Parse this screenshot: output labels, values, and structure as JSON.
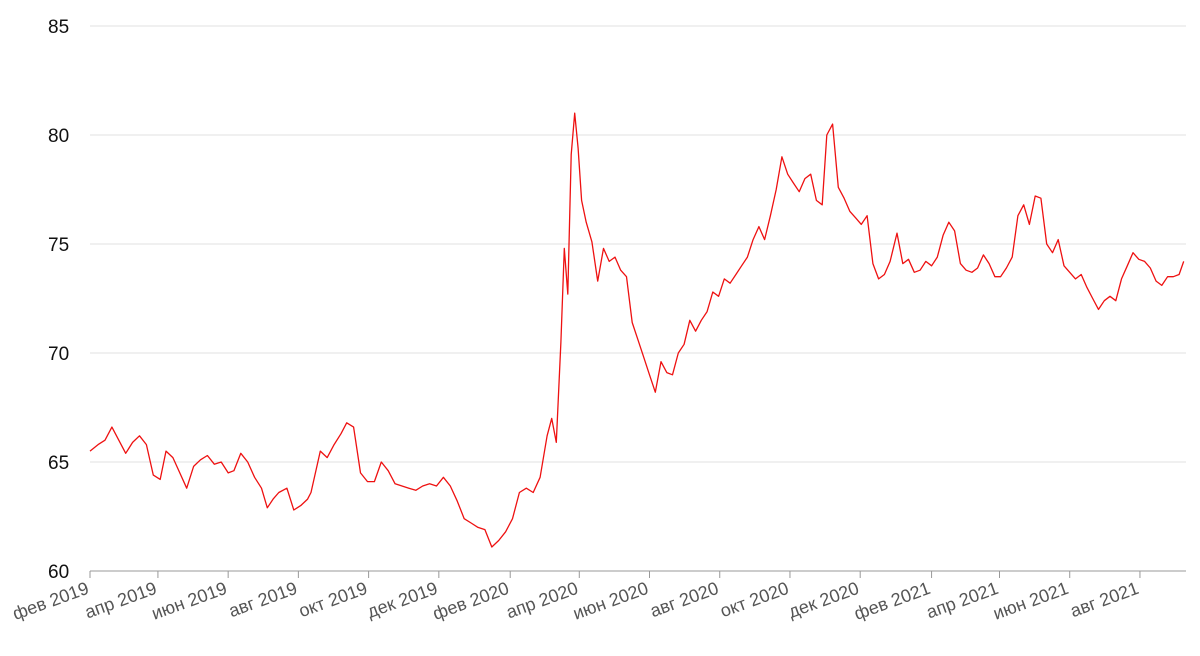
{
  "chart_data": {
    "type": "line",
    "title": "",
    "xlabel": "",
    "ylabel": "",
    "xlim": [
      "2019-02-01",
      "2021-09-10"
    ],
    "ylim": [
      60,
      85
    ],
    "yticks": [
      60,
      65,
      70,
      75,
      80,
      85
    ],
    "ytick_labels": [
      "60",
      "65",
      "70",
      "75",
      "80",
      "85"
    ],
    "xticks": [
      "2019-02-01",
      "2019-04-01",
      "2019-06-01",
      "2019-08-01",
      "2019-10-01",
      "2019-12-01",
      "2020-02-01",
      "2020-04-01",
      "2020-06-01",
      "2020-08-01",
      "2020-10-01",
      "2020-12-01",
      "2021-02-01",
      "2021-04-01",
      "2021-06-01",
      "2021-08-01"
    ],
    "xtick_labels": [
      "фев 2019",
      "апр 2019",
      "июн 2019",
      "авг 2019",
      "окт 2019",
      "дек 2019",
      "фев 2020",
      "апр 2020",
      "июн 2020",
      "авг 2020",
      "окт 2020",
      "дек 2020",
      "фев 2021",
      "апр 2021",
      "июн 2021",
      "авг 2021"
    ],
    "grid": true,
    "legend": "none",
    "line_color": "#ee1111",
    "series": [
      {
        "x": [
          "2019-02-01",
          "2019-02-08",
          "2019-02-14",
          "2019-02-20",
          "2019-02-26",
          "2019-03-04",
          "2019-03-10",
          "2019-03-16",
          "2019-03-22",
          "2019-03-28",
          "2019-04-03",
          "2019-04-08",
          "2019-04-14",
          "2019-04-20",
          "2019-04-26",
          "2019-05-02",
          "2019-05-08",
          "2019-05-14",
          "2019-05-20",
          "2019-05-26",
          "2019-06-01",
          "2019-06-06",
          "2019-06-12",
          "2019-06-18",
          "2019-06-24",
          "2019-06-30",
          "2019-07-05",
          "2019-07-10",
          "2019-07-15",
          "2019-07-22",
          "2019-07-28",
          "2019-08-03",
          "2019-08-09",
          "2019-08-12",
          "2019-08-20",
          "2019-08-26",
          "2019-09-01",
          "2019-09-07",
          "2019-09-12",
          "2019-09-18",
          "2019-09-24",
          "2019-09-30",
          "2019-10-06",
          "2019-10-12",
          "2019-10-18",
          "2019-10-24",
          "2019-10-30",
          "2019-11-05",
          "2019-11-11",
          "2019-11-17",
          "2019-11-23",
          "2019-11-29",
          "2019-12-05",
          "2019-12-11",
          "2019-12-17",
          "2019-12-23",
          "2019-12-29",
          "2020-01-04",
          "2020-01-10",
          "2020-01-16",
          "2020-01-22",
          "2020-01-28",
          "2020-02-03",
          "2020-02-09",
          "2020-02-15",
          "2020-02-21",
          "2020-02-27",
          "2020-03-04",
          "2020-03-08",
          "2020-03-12",
          "2020-03-16",
          "2020-03-19",
          "2020-03-22",
          "2020-03-25",
          "2020-03-28",
          "2020-03-31",
          "2020-04-03",
          "2020-04-07",
          "2020-04-12",
          "2020-04-17",
          "2020-04-22",
          "2020-04-27",
          "2020-05-02",
          "2020-05-07",
          "2020-05-12",
          "2020-05-17",
          "2020-05-22",
          "2020-05-27",
          "2020-06-01",
          "2020-06-06",
          "2020-06-11",
          "2020-06-16",
          "2020-06-21",
          "2020-06-26",
          "2020-07-01",
          "2020-07-06",
          "2020-07-11",
          "2020-07-16",
          "2020-07-21",
          "2020-07-26",
          "2020-07-31",
          "2020-08-05",
          "2020-08-10",
          "2020-08-15",
          "2020-08-20",
          "2020-08-25",
          "2020-08-30",
          "2020-09-04",
          "2020-09-09",
          "2020-09-14",
          "2020-09-19",
          "2020-09-24",
          "2020-09-29",
          "2020-10-04",
          "2020-10-09",
          "2020-10-14",
          "2020-10-19",
          "2020-10-24",
          "2020-10-29",
          "2020-11-02",
          "2020-11-07",
          "2020-11-12",
          "2020-11-17",
          "2020-11-22",
          "2020-11-27",
          "2020-12-02",
          "2020-12-07",
          "2020-12-12",
          "2020-12-17",
          "2020-12-22",
          "2020-12-27",
          "2021-01-02",
          "2021-01-07",
          "2021-01-12",
          "2021-01-17",
          "2021-01-22",
          "2021-01-27",
          "2021-02-01",
          "2021-02-06",
          "2021-02-11",
          "2021-02-16",
          "2021-02-21",
          "2021-02-26",
          "2021-03-03",
          "2021-03-08",
          "2021-03-13",
          "2021-03-18",
          "2021-03-23",
          "2021-03-28",
          "2021-04-02",
          "2021-04-07",
          "2021-04-12",
          "2021-04-17",
          "2021-04-22",
          "2021-04-27",
          "2021-05-02",
          "2021-05-07",
          "2021-05-12",
          "2021-05-17",
          "2021-05-22",
          "2021-05-27",
          "2021-06-01",
          "2021-06-06",
          "2021-06-11",
          "2021-06-16",
          "2021-06-21",
          "2021-06-26",
          "2021-07-01",
          "2021-07-06",
          "2021-07-11",
          "2021-07-16",
          "2021-07-21",
          "2021-07-26",
          "2021-07-31",
          "2021-08-05",
          "2021-08-10",
          "2021-08-15",
          "2021-08-20",
          "2021-08-25",
          "2021-08-30",
          "2021-09-04",
          "2021-09-08"
        ],
        "y": [
          65.5,
          65.8,
          66.0,
          66.6,
          66.0,
          65.4,
          65.9,
          66.2,
          65.8,
          64.4,
          64.2,
          65.5,
          65.2,
          64.5,
          63.8,
          64.8,
          65.1,
          65.3,
          64.9,
          65.0,
          64.5,
          64.6,
          65.4,
          65.0,
          64.3,
          63.8,
          62.9,
          63.3,
          63.6,
          63.8,
          62.8,
          63.0,
          63.3,
          63.6,
          65.5,
          65.2,
          65.8,
          66.3,
          66.8,
          66.6,
          64.5,
          64.1,
          64.1,
          65.0,
          64.6,
          64.0,
          63.9,
          63.8,
          63.7,
          63.9,
          64.0,
          63.9,
          64.3,
          63.9,
          63.2,
          62.4,
          62.2,
          62.0,
          61.9,
          61.1,
          61.4,
          61.8,
          62.4,
          63.6,
          63.8,
          63.6,
          64.3,
          66.2,
          67.0,
          65.9,
          70.5,
          74.8,
          72.7,
          79.1,
          81.0,
          79.4,
          77.0,
          76.0,
          75.1,
          73.3,
          74.8,
          74.2,
          74.4,
          73.8,
          73.5,
          71.4,
          70.6,
          69.8,
          69.0,
          68.2,
          69.6,
          69.1,
          69.0,
          70.0,
          70.4,
          71.5,
          71.0,
          71.5,
          71.9,
          72.8,
          72.6,
          73.4,
          73.2,
          73.6,
          74.0,
          74.4,
          75.2,
          75.8,
          75.2,
          76.3,
          77.5,
          79.0,
          78.2,
          77.8,
          77.4,
          78.0,
          78.2,
          77.0,
          76.8,
          80.0,
          80.5,
          77.6,
          77.1,
          76.5,
          76.2,
          75.9,
          76.3,
          74.1,
          73.4,
          73.6,
          74.2,
          75.5,
          74.1,
          74.3,
          73.7,
          73.8,
          74.2,
          74.0,
          74.4,
          75.4,
          76.0,
          75.6,
          74.1,
          73.8,
          73.7,
          73.9,
          74.5,
          74.1,
          73.5,
          73.5,
          73.9,
          74.4,
          76.3,
          76.8,
          75.9,
          77.2,
          77.1,
          75.0,
          74.6,
          75.2,
          74.0,
          73.7,
          73.4,
          73.6,
          73.0,
          72.5,
          72.0,
          72.4,
          72.6,
          72.4,
          73.4,
          74.0,
          74.6,
          74.3,
          74.2,
          73.9,
          73.3,
          73.1,
          73.5,
          73.5,
          73.6,
          74.2
        ]
      }
    ]
  }
}
